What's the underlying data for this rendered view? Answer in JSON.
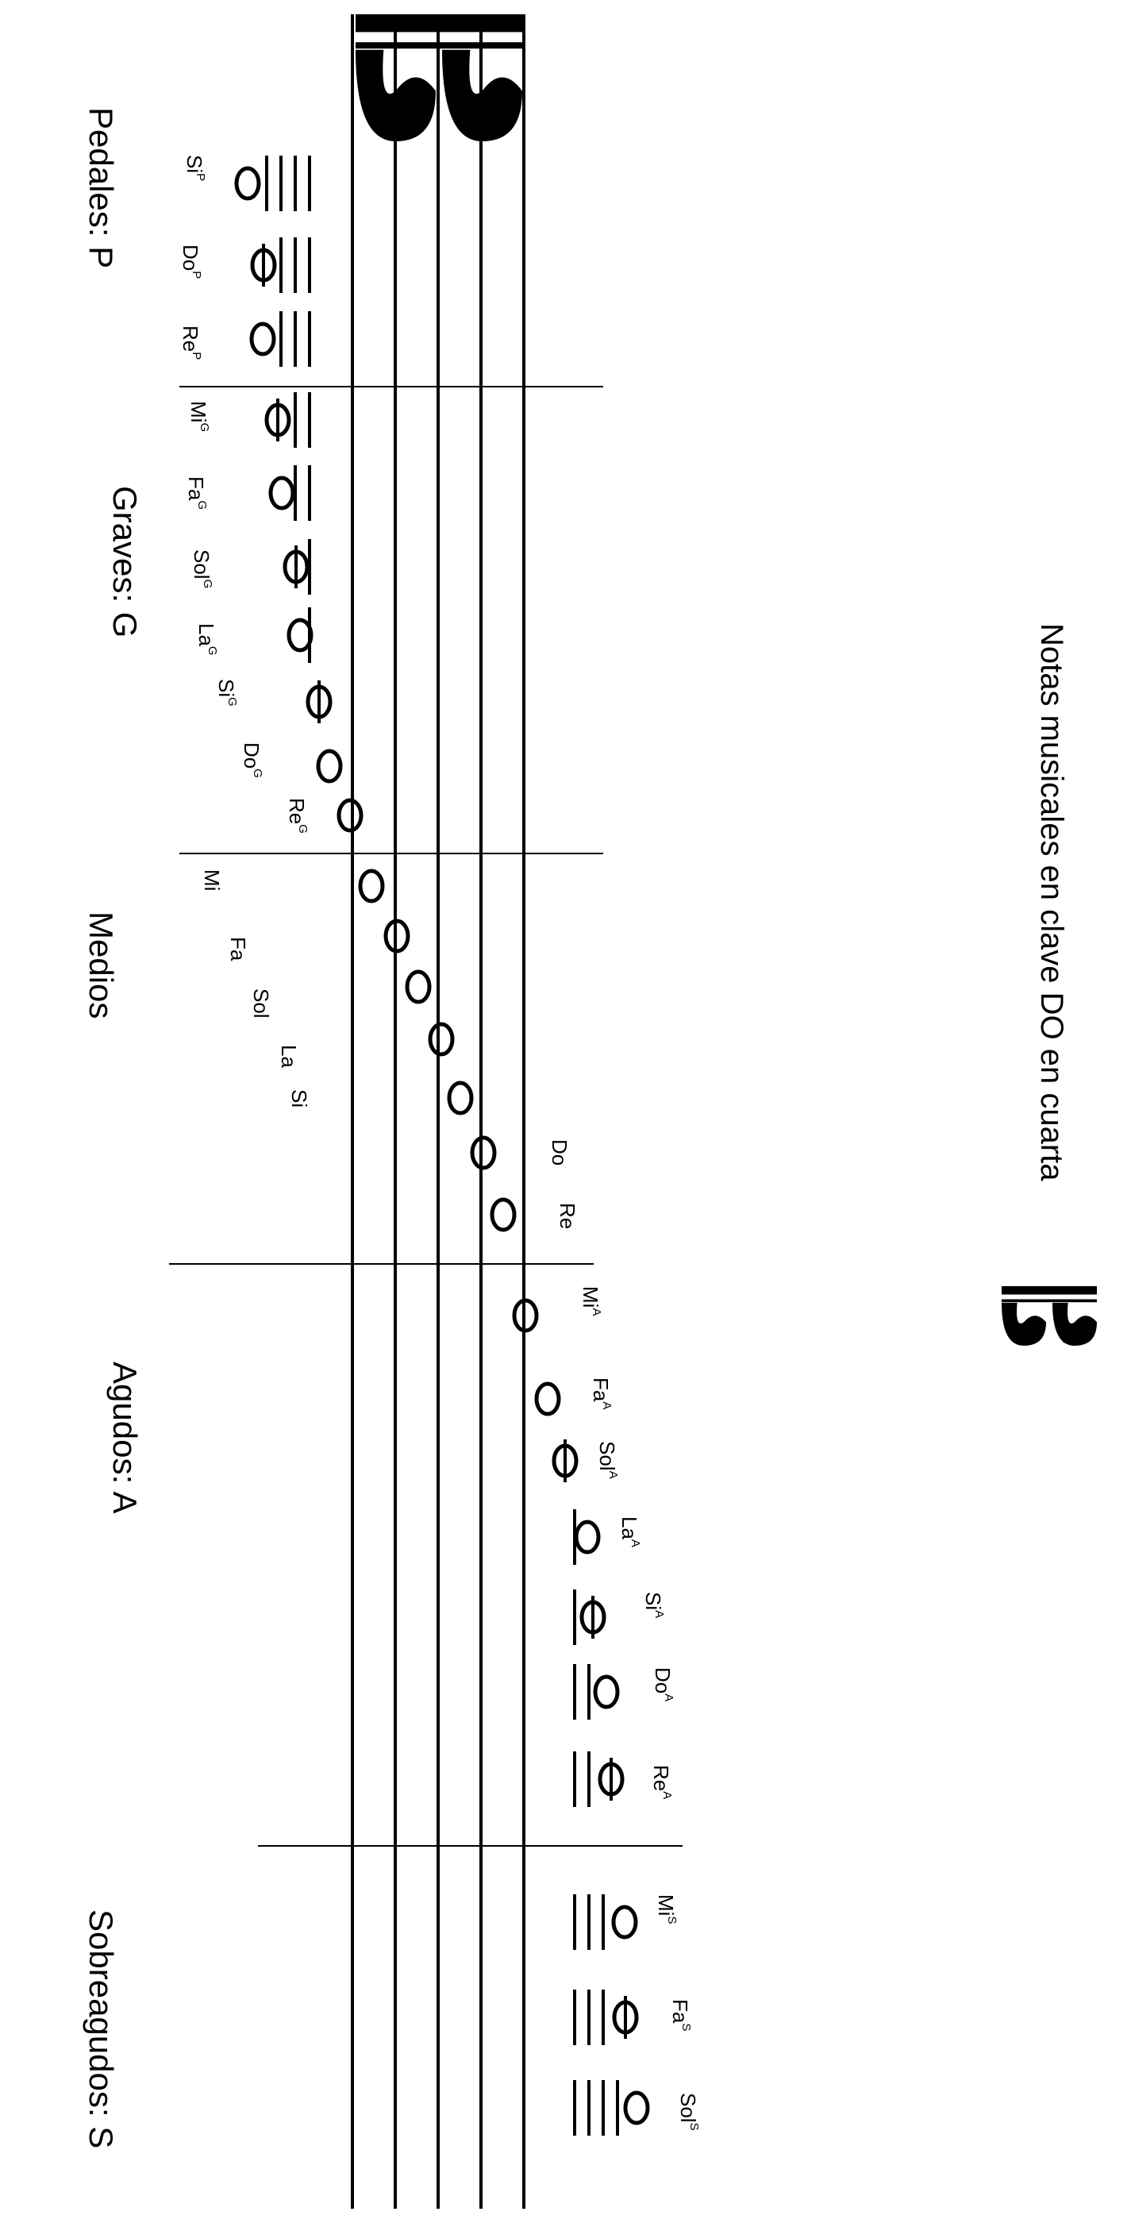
{
  "title": "Notas musicales en clave DO en cuarta",
  "clef": {
    "name": "clave DO en cuarta",
    "icon": "c-clef-icon"
  },
  "sections": [
    {
      "id": "pedales",
      "label": "Pedales: P"
    },
    {
      "id": "graves",
      "label": "Graves: G"
    },
    {
      "id": "medios",
      "label": "Medios"
    },
    {
      "id": "agudos",
      "label": "Agudos: A"
    },
    {
      "id": "sobreagudos",
      "label": "Sobreagudos: S"
    }
  ],
  "notes": [
    {
      "name": "Si",
      "sup": "P",
      "ledger": 4
    },
    {
      "name": "Do",
      "sup": "P",
      "ledger": 3
    },
    {
      "name": "Re",
      "sup": "P",
      "ledger": 3
    },
    {
      "name": "Mi",
      "sup": "G",
      "ledger": 2
    },
    {
      "name": "Fa",
      "sup": "G",
      "ledger": 2
    },
    {
      "name": "Sol",
      "sup": "G",
      "ledger": 1
    },
    {
      "name": "La",
      "sup": "G",
      "ledger": 1
    },
    {
      "name": "Si",
      "sup": "G",
      "ledger": 0
    },
    {
      "name": "Do",
      "sup": "G",
      "ledger": 0
    },
    {
      "name": "Re",
      "sup": "G",
      "ledger": 0
    },
    {
      "name": "Mi",
      "sup": "",
      "ledger": 0
    },
    {
      "name": "Fa",
      "sup": "",
      "ledger": 0
    },
    {
      "name": "Sol",
      "sup": "",
      "ledger": 0
    },
    {
      "name": "La",
      "sup": "",
      "ledger": 0
    },
    {
      "name": "Si",
      "sup": "",
      "ledger": 0
    },
    {
      "name": "Do",
      "sup": "",
      "ledger": 0
    },
    {
      "name": "Re",
      "sup": "",
      "ledger": 0
    },
    {
      "name": "Mi",
      "sup": "A",
      "ledger": 0
    },
    {
      "name": "Fa",
      "sup": "A",
      "ledger": 0
    },
    {
      "name": "Sol",
      "sup": "A",
      "ledger": 0
    },
    {
      "name": "La",
      "sup": "A",
      "ledger": 1
    },
    {
      "name": "Si",
      "sup": "A",
      "ledger": 1
    },
    {
      "name": "Do",
      "sup": "A",
      "ledger": 2
    },
    {
      "name": "Re",
      "sup": "A",
      "ledger": 2
    },
    {
      "name": "Mi",
      "sup": "S",
      "ledger": 3
    },
    {
      "name": "Fa",
      "sup": "S",
      "ledger": 3
    },
    {
      "name": "Sol",
      "sup": "S",
      "ledger": 4
    }
  ]
}
